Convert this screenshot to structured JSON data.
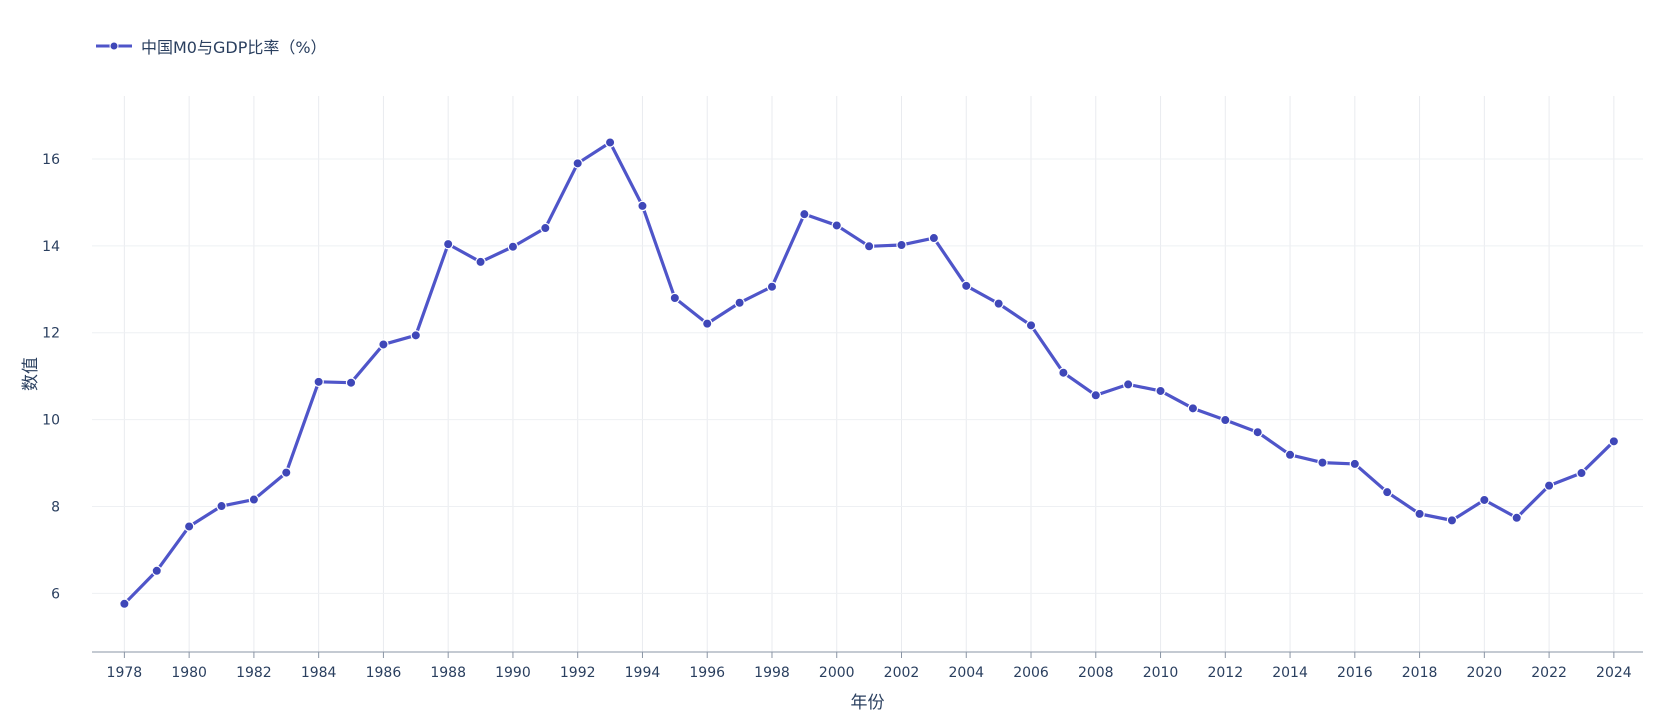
{
  "chart_data": {
    "type": "line",
    "title": "",
    "xlabel": "年份",
    "ylabel": "数值",
    "xlim": [
      1977,
      2024.9
    ],
    "ylim": [
      4.65,
      17.45
    ],
    "yticks": [
      6,
      8,
      10,
      12,
      14,
      16
    ],
    "xticks": [
      1978,
      1980,
      1982,
      1984,
      1986,
      1988,
      1990,
      1992,
      1994,
      1996,
      1998,
      2000,
      2002,
      2004,
      2006,
      2008,
      2010,
      2012,
      2014,
      2016,
      2018,
      2020,
      2022,
      2024
    ],
    "grid": true,
    "legend_position": "top-left",
    "series": [
      {
        "name": "中国M0与GDP比率（%）",
        "color": "#4f55c9",
        "marker_color": "#3f47b8",
        "x": [
          1978,
          1979,
          1980,
          1981,
          1982,
          1983,
          1984,
          1985,
          1986,
          1987,
          1988,
          1989,
          1990,
          1991,
          1992,
          1993,
          1994,
          1995,
          1996,
          1997,
          1998,
          1999,
          2000,
          2001,
          2002,
          2003,
          2004,
          2005,
          2006,
          2007,
          2008,
          2009,
          2010,
          2011,
          2012,
          2013,
          2014,
          2015,
          2016,
          2017,
          2018,
          2019,
          2020,
          2021,
          2022,
          2023,
          2024
        ],
        "values": [
          5.76,
          6.52,
          7.54,
          8.01,
          8.16,
          8.78,
          10.87,
          10.85,
          11.73,
          11.94,
          14.04,
          13.63,
          13.98,
          14.41,
          15.9,
          16.38,
          14.92,
          12.8,
          12.21,
          12.69,
          13.06,
          14.73,
          14.47,
          13.99,
          14.02,
          14.18,
          13.08,
          12.67,
          12.17,
          11.08,
          10.56,
          10.81,
          10.66,
          10.26,
          9.99,
          9.71,
          9.19,
          9.01,
          8.98,
          8.33,
          7.83,
          7.68,
          8.15,
          7.74,
          8.48,
          8.77,
          9.5
        ]
      }
    ]
  }
}
